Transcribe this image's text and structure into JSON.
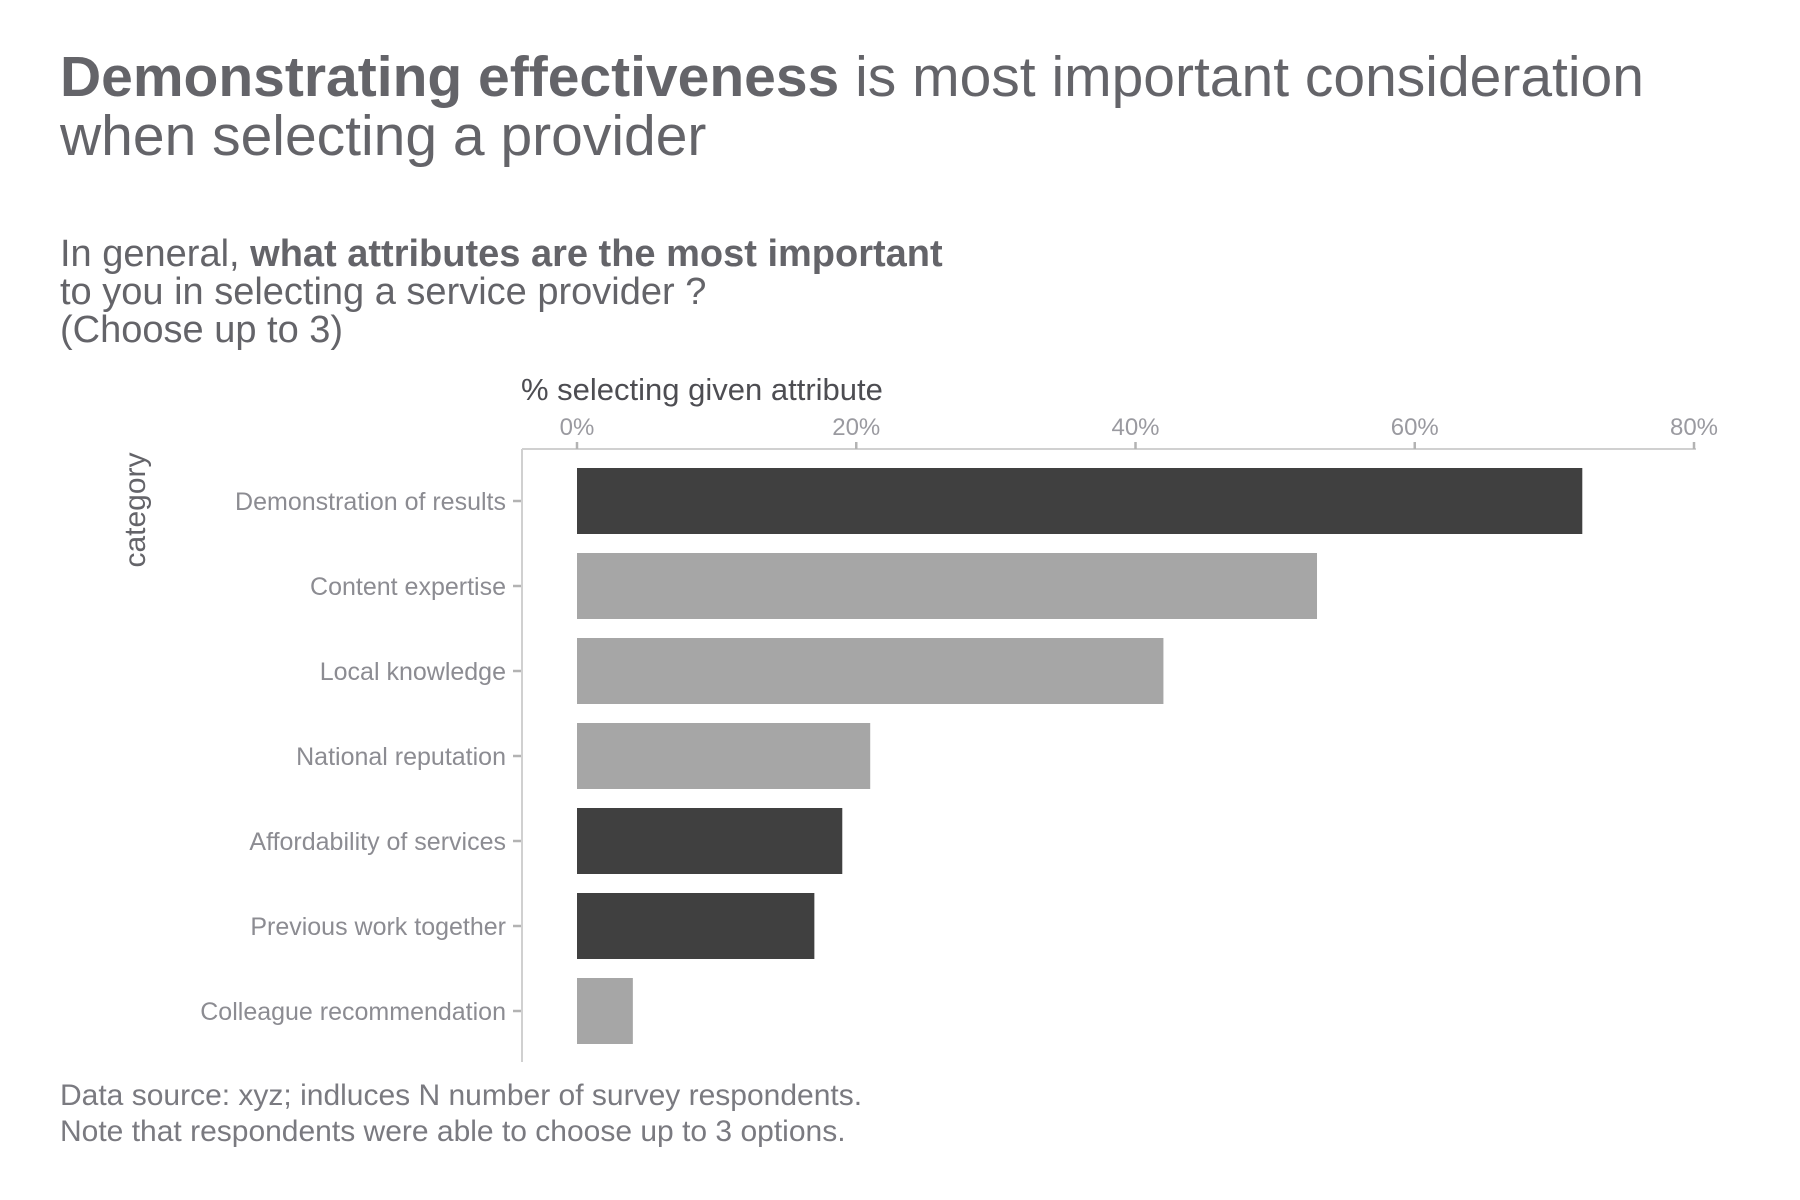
{
  "title": {
    "bold": "Demonstrating effectiveness",
    "rest": " is most important consideration when selecting a provider"
  },
  "subtitle": {
    "lead": "In general, ",
    "bold": "what attributes are the most important",
    "line2": "to you in selecting a service provider ?",
    "line3": "(Choose up to 3)"
  },
  "caption": {
    "line1": "Data source: xyz; indluces N number of survey respondents.",
    "line2": "Note that respondents were able to choose up to 3 options."
  },
  "colors": {
    "highlight": "#404040",
    "muted": "#a6a6a6",
    "axis": "#d0d0d0",
    "tick": "#b3b3b3"
  },
  "chart_data": {
    "type": "bar",
    "orientation": "horizontal",
    "xlabel": "% selecting given attribute",
    "ylabel": "category",
    "xlim": [
      0,
      0.8
    ],
    "x_ticks": [
      0,
      0.2,
      0.4,
      0.6,
      0.8
    ],
    "x_tick_labels": [
      "0%",
      "20%",
      "40%",
      "60%",
      "80%"
    ],
    "x_axis_position": "top",
    "grid": false,
    "categories": [
      "Demonstration of results",
      "Content expertise",
      "Local knowledge",
      "National reputation",
      "Affordability of services",
      "Previous work together",
      "Colleague recommendation"
    ],
    "values": [
      0.72,
      0.53,
      0.42,
      0.21,
      0.19,
      0.17,
      0.04
    ],
    "highlighted": [
      true,
      false,
      false,
      false,
      true,
      true,
      false
    ]
  }
}
